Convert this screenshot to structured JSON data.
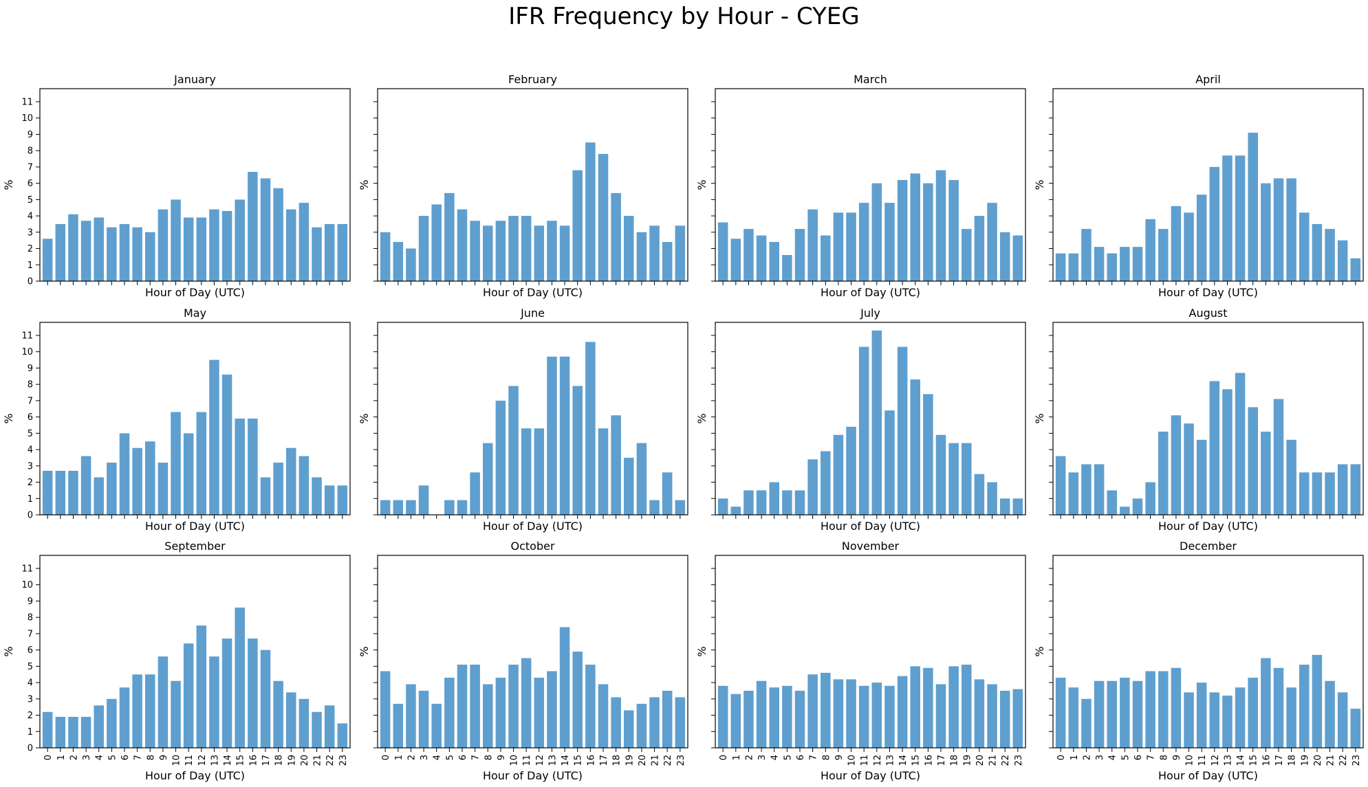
{
  "figure": {
    "title": "IFR Frequency by Hour - CYEG"
  },
  "style": {
    "bar_color": "#5f9fcf",
    "axis_color": "#000000"
  },
  "chart_data": [
    {
      "type": "bar",
      "title": "January",
      "xlabel": "Hour of Day (UTC)",
      "ylabel": "%",
      "ylim": [
        0,
        11.8
      ],
      "yticks": [
        0,
        1,
        2,
        3,
        4,
        5,
        6,
        7,
        8,
        9,
        10,
        11
      ],
      "categories": [
        "0",
        "1",
        "2",
        "3",
        "4",
        "5",
        "6",
        "7",
        "8",
        "9",
        "10",
        "11",
        "12",
        "13",
        "14",
        "15",
        "16",
        "17",
        "18",
        "19",
        "20",
        "21",
        "22",
        "23"
      ],
      "values": [
        2.6,
        3.5,
        4.1,
        3.7,
        3.9,
        3.3,
        3.5,
        3.3,
        3.0,
        4.4,
        5.0,
        3.9,
        3.9,
        4.4,
        4.3,
        5.0,
        6.7,
        6.3,
        5.7,
        4.4,
        4.8,
        3.3,
        3.5,
        3.5
      ]
    },
    {
      "type": "bar",
      "title": "February",
      "xlabel": "Hour of Day (UTC)",
      "ylabel": "%",
      "ylim": [
        0,
        11.8
      ],
      "yticks": [
        0,
        1,
        2,
        3,
        4,
        5,
        6,
        7,
        8,
        9,
        10,
        11
      ],
      "categories": [
        "0",
        "1",
        "2",
        "3",
        "4",
        "5",
        "6",
        "7",
        "8",
        "9",
        "10",
        "11",
        "12",
        "13",
        "14",
        "15",
        "16",
        "17",
        "18",
        "19",
        "20",
        "21",
        "22",
        "23"
      ],
      "values": [
        3.0,
        2.4,
        2.0,
        4.0,
        4.7,
        5.4,
        4.4,
        3.7,
        3.4,
        3.7,
        4.0,
        4.0,
        3.4,
        3.7,
        3.4,
        6.8,
        8.5,
        7.8,
        5.4,
        4.0,
        3.0,
        3.4,
        2.4,
        3.4
      ]
    },
    {
      "type": "bar",
      "title": "March",
      "xlabel": "Hour of Day (UTC)",
      "ylabel": "%",
      "ylim": [
        0,
        11.8
      ],
      "yticks": [
        0,
        1,
        2,
        3,
        4,
        5,
        6,
        7,
        8,
        9,
        10,
        11
      ],
      "categories": [
        "0",
        "1",
        "2",
        "3",
        "4",
        "5",
        "6",
        "7",
        "8",
        "9",
        "10",
        "11",
        "12",
        "13",
        "14",
        "15",
        "16",
        "17",
        "18",
        "19",
        "20",
        "21",
        "22",
        "23"
      ],
      "values": [
        3.6,
        2.6,
        3.2,
        2.8,
        2.4,
        1.6,
        3.2,
        4.4,
        2.8,
        4.2,
        4.2,
        4.8,
        6.0,
        4.8,
        6.2,
        6.6,
        6.0,
        6.8,
        6.2,
        3.2,
        4.0,
        4.8,
        3.0,
        2.8
      ]
    },
    {
      "type": "bar",
      "title": "April",
      "xlabel": "Hour of Day (UTC)",
      "ylabel": "%",
      "ylim": [
        0,
        11.8
      ],
      "yticks": [
        0,
        1,
        2,
        3,
        4,
        5,
        6,
        7,
        8,
        9,
        10,
        11
      ],
      "categories": [
        "0",
        "1",
        "2",
        "3",
        "4",
        "5",
        "6",
        "7",
        "8",
        "9",
        "10",
        "11",
        "12",
        "13",
        "14",
        "15",
        "16",
        "17",
        "18",
        "19",
        "20",
        "21",
        "22",
        "23"
      ],
      "values": [
        1.7,
        1.7,
        3.2,
        2.1,
        1.7,
        2.1,
        2.1,
        3.8,
        3.2,
        4.6,
        4.2,
        5.3,
        7.0,
        7.7,
        7.7,
        9.1,
        6.0,
        6.3,
        6.3,
        4.2,
        3.5,
        3.2,
        2.5,
        1.4
      ]
    },
    {
      "type": "bar",
      "title": "May",
      "xlabel": "Hour of Day (UTC)",
      "ylabel": "%",
      "ylim": [
        0,
        11.8
      ],
      "yticks": [
        0,
        1,
        2,
        3,
        4,
        5,
        6,
        7,
        8,
        9,
        10,
        11
      ],
      "categories": [
        "0",
        "1",
        "2",
        "3",
        "4",
        "5",
        "6",
        "7",
        "8",
        "9",
        "10",
        "11",
        "12",
        "13",
        "14",
        "15",
        "16",
        "17",
        "18",
        "19",
        "20",
        "21",
        "22",
        "23"
      ],
      "values": [
        2.7,
        2.7,
        2.7,
        3.6,
        2.3,
        3.2,
        5.0,
        4.1,
        4.5,
        3.2,
        6.3,
        5.0,
        6.3,
        9.5,
        8.6,
        5.9,
        5.9,
        2.3,
        3.2,
        4.1,
        3.6,
        2.3,
        1.8,
        1.8
      ]
    },
    {
      "type": "bar",
      "title": "June",
      "xlabel": "Hour of Day (UTC)",
      "ylabel": "%",
      "ylim": [
        0,
        11.8
      ],
      "yticks": [
        0,
        1,
        2,
        3,
        4,
        5,
        6,
        7,
        8,
        9,
        10,
        11
      ],
      "categories": [
        "0",
        "1",
        "2",
        "3",
        "4",
        "5",
        "6",
        "7",
        "8",
        "9",
        "10",
        "11",
        "12",
        "13",
        "14",
        "15",
        "16",
        "17",
        "18",
        "19",
        "20",
        "21",
        "22",
        "23"
      ],
      "values": [
        0.9,
        0.9,
        0.9,
        1.8,
        0,
        0.9,
        0.9,
        2.6,
        4.4,
        7.0,
        7.9,
        5.3,
        5.3,
        9.7,
        9.7,
        7.9,
        10.6,
        5.3,
        6.1,
        3.5,
        4.4,
        0.9,
        2.6,
        0.9
      ]
    },
    {
      "type": "bar",
      "title": "July",
      "xlabel": "Hour of Day (UTC)",
      "ylabel": "%",
      "ylim": [
        0,
        11.8
      ],
      "yticks": [
        0,
        1,
        2,
        3,
        4,
        5,
        6,
        7,
        8,
        9,
        10,
        11
      ],
      "categories": [
        "0",
        "1",
        "2",
        "3",
        "4",
        "5",
        "6",
        "7",
        "8",
        "9",
        "10",
        "11",
        "12",
        "13",
        "14",
        "15",
        "16",
        "17",
        "18",
        "19",
        "20",
        "21",
        "22",
        "23"
      ],
      "values": [
        1.0,
        0.5,
        1.5,
        1.5,
        2.0,
        1.5,
        1.5,
        3.4,
        3.9,
        4.9,
        5.4,
        10.3,
        11.3,
        6.4,
        10.3,
        8.3,
        7.4,
        4.9,
        4.4,
        4.4,
        2.5,
        2.0,
        1.0,
        1.0
      ]
    },
    {
      "type": "bar",
      "title": "August",
      "xlabel": "Hour of Day (UTC)",
      "ylabel": "%",
      "ylim": [
        0,
        11.8
      ],
      "yticks": [
        0,
        1,
        2,
        3,
        4,
        5,
        6,
        7,
        8,
        9,
        10,
        11
      ],
      "categories": [
        "0",
        "1",
        "2",
        "3",
        "4",
        "5",
        "6",
        "7",
        "8",
        "9",
        "10",
        "11",
        "12",
        "13",
        "14",
        "15",
        "16",
        "17",
        "18",
        "19",
        "20",
        "21",
        "22",
        "23"
      ],
      "values": [
        3.6,
        2.6,
        3.1,
        3.1,
        1.5,
        0.5,
        1.0,
        2.0,
        5.1,
        6.1,
        5.6,
        4.6,
        8.2,
        7.7,
        8.7,
        6.6,
        5.1,
        7.1,
        4.6,
        2.6,
        2.6,
        2.6,
        3.1,
        3.1
      ]
    },
    {
      "type": "bar",
      "title": "September",
      "xlabel": "Hour of Day (UTC)",
      "ylabel": "%",
      "ylim": [
        0,
        11.8
      ],
      "yticks": [
        0,
        1,
        2,
        3,
        4,
        5,
        6,
        7,
        8,
        9,
        10,
        11
      ],
      "categories": [
        "0",
        "1",
        "2",
        "3",
        "4",
        "5",
        "6",
        "7",
        "8",
        "9",
        "10",
        "11",
        "12",
        "13",
        "14",
        "15",
        "16",
        "17",
        "18",
        "19",
        "20",
        "21",
        "22",
        "23"
      ],
      "values": [
        2.2,
        1.9,
        1.9,
        1.9,
        2.6,
        3.0,
        3.7,
        4.5,
        4.5,
        5.6,
        4.1,
        6.4,
        7.5,
        5.6,
        6.7,
        8.6,
        6.7,
        6.0,
        4.1,
        3.4,
        3.0,
        2.2,
        2.6,
        1.5
      ]
    },
    {
      "type": "bar",
      "title": "October",
      "xlabel": "Hour of Day (UTC)",
      "ylabel": "%",
      "ylim": [
        0,
        11.8
      ],
      "yticks": [
        0,
        1,
        2,
        3,
        4,
        5,
        6,
        7,
        8,
        9,
        10,
        11
      ],
      "categories": [
        "0",
        "1",
        "2",
        "3",
        "4",
        "5",
        "6",
        "7",
        "8",
        "9",
        "10",
        "11",
        "12",
        "13",
        "14",
        "15",
        "16",
        "17",
        "18",
        "19",
        "20",
        "21",
        "22",
        "23"
      ],
      "values": [
        4.7,
        2.7,
        3.9,
        3.5,
        2.7,
        4.3,
        5.1,
        5.1,
        3.9,
        4.3,
        5.1,
        5.5,
        4.3,
        4.7,
        7.4,
        5.9,
        5.1,
        3.9,
        3.1,
        2.3,
        2.7,
        3.1,
        3.5,
        3.1
      ]
    },
    {
      "type": "bar",
      "title": "November",
      "xlabel": "Hour of Day (UTC)",
      "ylabel": "%",
      "ylim": [
        0,
        11.8
      ],
      "yticks": [
        0,
        1,
        2,
        3,
        4,
        5,
        6,
        7,
        8,
        9,
        10,
        11
      ],
      "categories": [
        "0",
        "1",
        "2",
        "3",
        "4",
        "5",
        "6",
        "7",
        "8",
        "9",
        "10",
        "11",
        "12",
        "13",
        "14",
        "15",
        "16",
        "17",
        "18",
        "19",
        "20",
        "21",
        "22",
        "23"
      ],
      "values": [
        3.8,
        3.3,
        3.5,
        4.1,
        3.7,
        3.8,
        3.5,
        4.5,
        4.6,
        4.2,
        4.2,
        3.8,
        4.0,
        3.8,
        4.4,
        5.0,
        4.9,
        3.9,
        5.0,
        5.1,
        4.2,
        3.9,
        3.5,
        3.6
      ]
    },
    {
      "type": "bar",
      "title": "December",
      "xlabel": "Hour of Day (UTC)",
      "ylabel": "%",
      "ylim": [
        0,
        11.8
      ],
      "yticks": [
        0,
        1,
        2,
        3,
        4,
        5,
        6,
        7,
        8,
        9,
        10,
        11
      ],
      "categories": [
        "0",
        "1",
        "2",
        "3",
        "4",
        "5",
        "6",
        "7",
        "8",
        "9",
        "10",
        "11",
        "12",
        "13",
        "14",
        "15",
        "16",
        "17",
        "18",
        "19",
        "20",
        "21",
        "22",
        "23"
      ],
      "values": [
        4.3,
        3.7,
        3.0,
        4.1,
        4.1,
        4.3,
        4.1,
        4.7,
        4.7,
        4.9,
        3.4,
        4.0,
        3.4,
        3.2,
        3.7,
        4.3,
        5.5,
        4.9,
        3.7,
        5.1,
        5.7,
        4.1,
        3.4,
        2.4
      ]
    }
  ]
}
